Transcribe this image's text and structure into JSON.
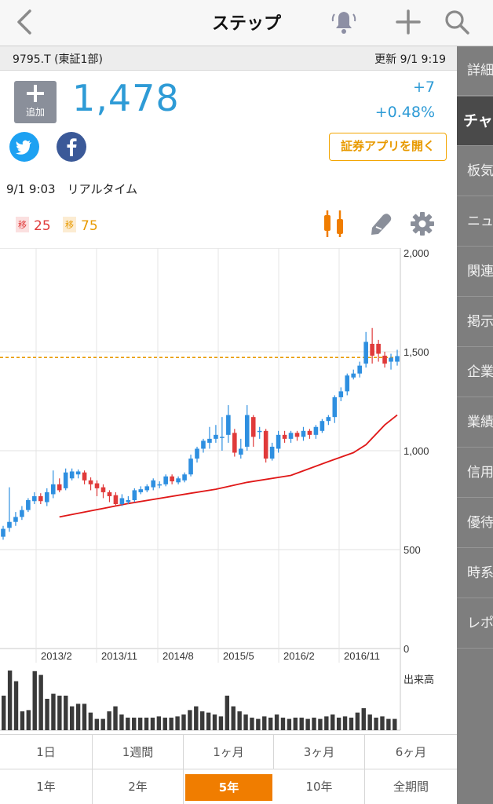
{
  "nav": {
    "title": "ステップ"
  },
  "info": {
    "code": "9795.T (東証1部)",
    "updated": "更新  9/1  9:19"
  },
  "side_tabs": [
    "詳細",
    "チャ",
    "板気",
    "ニュ",
    "関連",
    "掲示",
    "企業",
    "業績",
    "信用",
    "優待",
    "時系",
    "レポ"
  ],
  "active_side_tab": 1,
  "quote": {
    "add_label": "追加",
    "price": "1,478",
    "change": "+7",
    "change_pct": "+0.48%",
    "app_button": "証券アプリを開く",
    "realtime": "9/1 9:03　リアルタイム",
    "ma_short_badge": "移",
    "ma_short": "25",
    "ma_long_badge": "移",
    "ma_long": "75"
  },
  "chart_data": {
    "type": "candlestick",
    "y_ticks": [
      "2,000",
      "1,500",
      "1,000",
      "500",
      "0"
    ],
    "ylim": [
      0,
      2000
    ],
    "x_ticks": [
      "2013/2",
      "2013/11",
      "2014/8",
      "2015/5",
      "2016/2",
      "2016/11"
    ],
    "reference_line": 1471,
    "volume_label": "出来高",
    "candles": [
      {
        "o": 565,
        "c": 605,
        "h": 620,
        "l": 550
      },
      {
        "o": 610,
        "c": 640,
        "h": 815,
        "l": 590
      },
      {
        "o": 640,
        "c": 665,
        "h": 690,
        "l": 620
      },
      {
        "o": 665,
        "c": 700,
        "h": 720,
        "l": 650
      },
      {
        "o": 700,
        "c": 750,
        "h": 760,
        "l": 690
      },
      {
        "o": 745,
        "c": 770,
        "h": 790,
        "l": 730
      },
      {
        "o": 770,
        "c": 745,
        "h": 785,
        "l": 730
      },
      {
        "o": 740,
        "c": 790,
        "h": 810,
        "l": 720
      },
      {
        "o": 780,
        "c": 830,
        "h": 900,
        "l": 760
      },
      {
        "o": 830,
        "c": 800,
        "h": 860,
        "l": 790
      },
      {
        "o": 810,
        "c": 890,
        "h": 910,
        "l": 800
      },
      {
        "o": 860,
        "c": 895,
        "h": 910,
        "l": 850
      },
      {
        "o": 880,
        "c": 895,
        "h": 905,
        "l": 860
      },
      {
        "o": 890,
        "c": 850,
        "h": 900,
        "l": 830
      },
      {
        "o": 850,
        "c": 830,
        "h": 865,
        "l": 800
      },
      {
        "o": 835,
        "c": 810,
        "h": 850,
        "l": 770
      },
      {
        "o": 815,
        "c": 790,
        "h": 830,
        "l": 760
      },
      {
        "o": 790,
        "c": 770,
        "h": 800,
        "l": 740
      },
      {
        "o": 775,
        "c": 730,
        "h": 790,
        "l": 720
      },
      {
        "o": 730,
        "c": 760,
        "h": 780,
        "l": 720
      },
      {
        "o": 740,
        "c": 750,
        "h": 770,
        "l": 730
      },
      {
        "o": 750,
        "c": 800,
        "h": 810,
        "l": 740
      },
      {
        "o": 790,
        "c": 805,
        "h": 820,
        "l": 780
      },
      {
        "o": 800,
        "c": 820,
        "h": 830,
        "l": 790
      },
      {
        "o": 815,
        "c": 850,
        "h": 860,
        "l": 800
      },
      {
        "o": 830,
        "c": 830,
        "h": 845,
        "l": 810
      },
      {
        "o": 830,
        "c": 870,
        "h": 880,
        "l": 820
      },
      {
        "o": 870,
        "c": 845,
        "h": 880,
        "l": 830
      },
      {
        "o": 840,
        "c": 860,
        "h": 870,
        "l": 830
      },
      {
        "o": 850,
        "c": 880,
        "h": 890,
        "l": 840
      },
      {
        "o": 880,
        "c": 960,
        "h": 980,
        "l": 870
      },
      {
        "o": 960,
        "c": 1010,
        "h": 1020,
        "l": 940
      },
      {
        "o": 1010,
        "c": 1050,
        "h": 1060,
        "l": 990
      },
      {
        "o": 1040,
        "c": 1060,
        "h": 1120,
        "l": 1010
      },
      {
        "o": 1060,
        "c": 1080,
        "h": 1130,
        "l": 1040
      },
      {
        "o": 1070,
        "c": 1070,
        "h": 1170,
        "l": 1000
      },
      {
        "o": 1080,
        "c": 1180,
        "h": 1230,
        "l": 1040
      },
      {
        "o": 1090,
        "c": 990,
        "h": 1110,
        "l": 970
      },
      {
        "o": 980,
        "c": 1010,
        "h": 1060,
        "l": 960
      },
      {
        "o": 1020,
        "c": 1180,
        "h": 1230,
        "l": 1000
      },
      {
        "o": 1170,
        "c": 1070,
        "h": 1180,
        "l": 1020
      },
      {
        "o": 1100,
        "c": 1100,
        "h": 1120,
        "l": 1060
      },
      {
        "o": 1100,
        "c": 960,
        "h": 1110,
        "l": 940
      },
      {
        "o": 960,
        "c": 1020,
        "h": 1040,
        "l": 950
      },
      {
        "o": 1010,
        "c": 1080,
        "h": 1100,
        "l": 990
      },
      {
        "o": 1080,
        "c": 1060,
        "h": 1100,
        "l": 1040
      },
      {
        "o": 1060,
        "c": 1090,
        "h": 1100,
        "l": 1040
      },
      {
        "o": 1090,
        "c": 1070,
        "h": 1100,
        "l": 1050
      },
      {
        "o": 1070,
        "c": 1100,
        "h": 1120,
        "l": 1050
      },
      {
        "o": 1100,
        "c": 1080,
        "h": 1110,
        "l": 1060
      },
      {
        "o": 1080,
        "c": 1120,
        "h": 1130,
        "l": 1060
      },
      {
        "o": 1100,
        "c": 1150,
        "h": 1160,
        "l": 1090
      },
      {
        "o": 1150,
        "c": 1170,
        "h": 1180,
        "l": 1130
      },
      {
        "o": 1170,
        "c": 1270,
        "h": 1280,
        "l": 1140
      },
      {
        "o": 1270,
        "c": 1300,
        "h": 1320,
        "l": 1250
      },
      {
        "o": 1300,
        "c": 1380,
        "h": 1390,
        "l": 1280
      },
      {
        "o": 1370,
        "c": 1390,
        "h": 1410,
        "l": 1360
      },
      {
        "o": 1390,
        "c": 1430,
        "h": 1450,
        "l": 1370
      },
      {
        "o": 1440,
        "c": 1550,
        "h": 1600,
        "l": 1420
      },
      {
        "o": 1540,
        "c": 1480,
        "h": 1620,
        "l": 1440
      },
      {
        "o": 1540,
        "c": 1490,
        "h": 1560,
        "l": 1450
      },
      {
        "o": 1480,
        "c": 1440,
        "h": 1500,
        "l": 1420
      },
      {
        "o": 1450,
        "c": 1470,
        "h": 1490,
        "l": 1410
      },
      {
        "o": 1450,
        "c": 1478,
        "h": 1510,
        "l": 1430
      }
    ],
    "ma75": [
      [
        9,
        665
      ],
      [
        20,
        733
      ],
      [
        30,
        785
      ],
      [
        34,
        805
      ],
      [
        39,
        840
      ],
      [
        46,
        875
      ],
      [
        52,
        945
      ],
      [
        56,
        990
      ],
      [
        58,
        1030
      ],
      [
        61,
        1130
      ],
      [
        63,
        1180
      ]
    ],
    "volume": [
      55,
      95,
      78,
      30,
      32,
      94,
      88,
      50,
      58,
      55,
      55,
      38,
      42,
      42,
      28,
      18,
      18,
      30,
      38,
      25,
      20,
      20,
      20,
      20,
      20,
      22,
      20,
      20,
      22,
      25,
      32,
      38,
      30,
      28,
      25,
      22,
      55,
      38,
      30,
      25,
      20,
      18,
      22,
      20,
      25,
      20,
      18,
      20,
      20,
      18,
      20,
      18,
      22,
      25,
      20,
      22,
      20,
      28,
      35,
      25,
      20,
      22,
      18,
      18
    ]
  },
  "periods": {
    "row1": [
      "1日",
      "1週間",
      "1ヶ月",
      "3ヶ月",
      "6ヶ月"
    ],
    "row2": [
      "1年",
      "2年",
      "5年",
      "10年",
      "全期間"
    ],
    "active": "5年"
  },
  "colors": {
    "up": "#2e8fe0",
    "down": "#e03a3a",
    "accent": "#f07d00",
    "price": "#2e9bd6"
  }
}
